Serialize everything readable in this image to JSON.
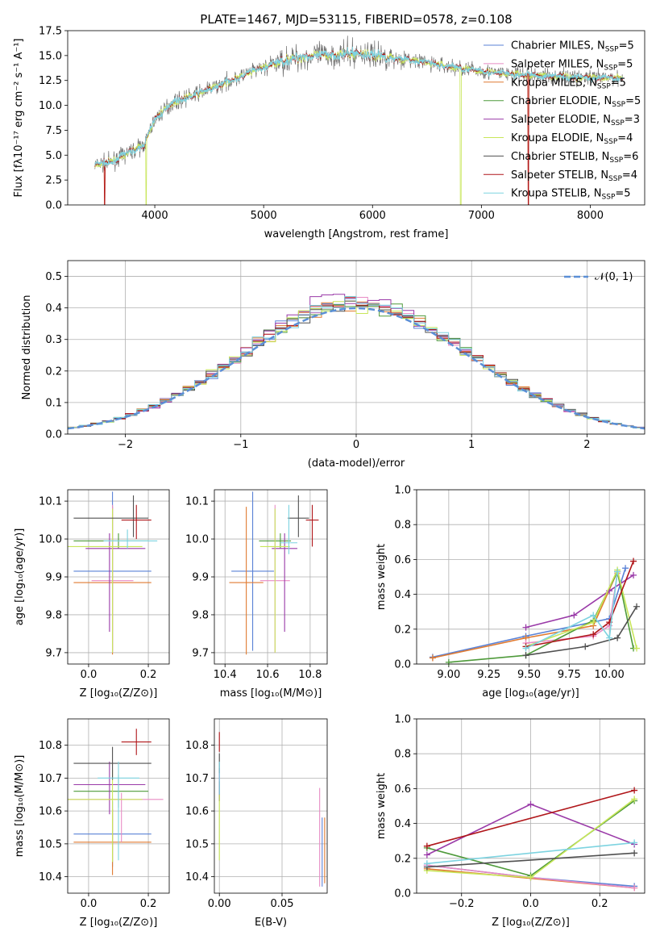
{
  "chart_data": [
    {
      "panel": "spectrum",
      "type": "line",
      "title": "PLATE=1467, MJD=53115, FIBERID=0578, z=0.108",
      "xlabel": "wavelength [Angstrom, rest frame]",
      "ylabel": "Flux [fλ10⁻¹⁷ erg cm⁻² s⁻¹ A⁻¹]",
      "xlim": [
        3200,
        8500
      ],
      "ylim": [
        0,
        17.5
      ],
      "xticks": [
        "4000",
        "5000",
        "6000",
        "7000",
        "8000"
      ],
      "yticks": [
        "0.0",
        "2.5",
        "5.0",
        "7.5",
        "10.0",
        "12.5",
        "15.0",
        "17.5"
      ],
      "legend_position": "right",
      "series": [
        {
          "name": "Chabrier MILES, N",
          "sub": "SSP",
          "suffix": "=5",
          "color": "#5a82d6"
        },
        {
          "name": "Salpeter MILES, N",
          "sub": "SSP",
          "suffix": "=5",
          "color": "#e88bc4"
        },
        {
          "name": "Kroupa MILES, N",
          "sub": "SSP",
          "suffix": "=5",
          "color": "#e07a30"
        },
        {
          "name": "Chabrier ELODIE, N",
          "sub": "SSP",
          "suffix": "=5",
          "color": "#4e9a3a"
        },
        {
          "name": "Salpeter ELODIE, N",
          "sub": "SSP",
          "suffix": "=3",
          "color": "#9a3aa8"
        },
        {
          "name": "Kroupa ELODIE, N",
          "sub": "SSP",
          "suffix": "=4",
          "color": "#c8e65a"
        },
        {
          "name": "Chabrier STELIB, N",
          "sub": "SSP",
          "suffix": "=6",
          "color": "#505050"
        },
        {
          "name": "Salpeter STELIB, N",
          "sub": "SSP",
          "suffix": "=4",
          "color": "#b0161a"
        },
        {
          "name": "Kroupa STELIB, N",
          "sub": "SSP",
          "suffix": "=5",
          "color": "#7dd3e0"
        }
      ],
      "continuum": {
        "x": [
          3450,
          3600,
          3750,
          3900,
          4000,
          4150,
          4300,
          4500,
          4700,
          4900,
          5100,
          5300,
          5500,
          5700,
          5900,
          6100,
          6300,
          6500,
          6700,
          6900,
          7100,
          7300,
          7500,
          7700,
          7900,
          8100,
          8300
        ],
        "y": [
          4.0,
          4.3,
          5.2,
          6.0,
          8.6,
          10.2,
          10.8,
          11.6,
          12.5,
          13.4,
          14.2,
          14.8,
          15.0,
          15.1,
          15.2,
          14.9,
          14.6,
          14.3,
          13.9,
          13.6,
          13.3,
          13.1,
          13.0,
          12.9,
          12.8,
          12.7,
          12.8
        ]
      }
    },
    {
      "panel": "residuals",
      "type": "line",
      "xlabel": "(data-model)/error",
      "ylabel": "Normed distribution",
      "xlim": [
        -2.5,
        2.5
      ],
      "ylim": [
        0,
        0.55
      ],
      "xticks": [
        "−2",
        "−1",
        "0",
        "1",
        "2"
      ],
      "yticks": [
        "0.0",
        "0.1",
        "0.2",
        "0.3",
        "0.4",
        "0.5"
      ],
      "legend": "𝒩(0, 1)",
      "legend_position": "top-right",
      "gaussian": {
        "mean": 0,
        "sigma": 1,
        "color": "#5b8fd6"
      }
    },
    {
      "panel": "age-vs-Z",
      "type": "scatter",
      "xlabel": "Z [log₁₀(Z/Z⊙)]",
      "ylabel": "age  [log₁₀(age/yr)]",
      "xlim": [
        -0.07,
        0.27
      ],
      "ylim": [
        9.67,
        10.13
      ],
      "xticks": [
        "0.0",
        "0.2"
      ],
      "yticks": [
        "9.7",
        "9.8",
        "9.9",
        "10.0",
        "10.1"
      ],
      "points": [
        {
          "x": 0.08,
          "y": 9.915,
          "xerr": [
            0.13,
            0.13
          ],
          "yerr": [
            0.21,
            0.21
          ],
          "color": "#5a82d6"
        },
        {
          "x": 0.08,
          "y": 9.885,
          "xerr": [
            0.13,
            0.13
          ],
          "yerr": [
            0.19,
            0.2
          ],
          "color": "#e07a30"
        },
        {
          "x": 0.08,
          "y": 9.89,
          "xerr": [
            0.07,
            0.07
          ],
          "yerr": [
            0.19,
            0.2
          ],
          "color": "#e88bc4"
        },
        {
          "x": 0.1,
          "y": 9.995,
          "xerr": [
            0.15,
            0.1
          ],
          "yerr": [
            0.02,
            0.02
          ],
          "color": "#4e9a3a"
        },
        {
          "x": 0.07,
          "y": 9.975,
          "xerr": [
            0.08,
            0.12
          ],
          "yerr": [
            0.22,
            0.04
          ],
          "color": "#9a3aa8"
        },
        {
          "x": 0.08,
          "y": 9.98,
          "xerr": [
            0.15,
            0.1
          ],
          "yerr": [
            0.28,
            0.1
          ],
          "color": "#c8e65a"
        },
        {
          "x": 0.15,
          "y": 10.055,
          "xerr": [
            0.2,
            0.05
          ],
          "yerr": [
            0.05,
            0.06
          ],
          "color": "#505050"
        },
        {
          "x": 0.16,
          "y": 10.05,
          "xerr": [
            0.05,
            0.05
          ],
          "yerr": [
            0.05,
            0.04
          ],
          "color": "#b0161a"
        },
        {
          "x": 0.13,
          "y": 9.995,
          "xerr": [
            0.08,
            0.1
          ],
          "yerr": [
            0.02,
            0.03
          ],
          "color": "#7dd3e0"
        }
      ]
    },
    {
      "panel": "age-vs-mass",
      "type": "scatter",
      "xlabel": "mass [log₁₀(M/M⊙)]",
      "ylabel": "",
      "xlim": [
        10.35,
        10.88
      ],
      "ylim": [
        9.67,
        10.13
      ],
      "xticks": [
        "10.4",
        "10.6",
        "10.8"
      ],
      "yticks": [
        "9.7",
        "9.8",
        "9.9",
        "10.0",
        "10.1"
      ],
      "points": [
        {
          "x": 10.53,
          "y": 9.915,
          "xerr": [
            0.1,
            0.1
          ],
          "yerr": [
            0.21,
            0.21
          ],
          "color": "#5a82d6"
        },
        {
          "x": 10.5,
          "y": 9.885,
          "xerr": [
            0.08,
            0.08
          ],
          "yerr": [
            0.19,
            0.2
          ],
          "color": "#e07a30"
        },
        {
          "x": 10.635,
          "y": 9.89,
          "xerr": [
            0.07,
            0.07
          ],
          "yerr": [
            0.19,
            0.2
          ],
          "color": "#e88bc4"
        },
        {
          "x": 10.66,
          "y": 9.995,
          "xerr": [
            0.1,
            0.05
          ],
          "yerr": [
            0.02,
            0.02
          ],
          "color": "#4e9a3a"
        },
        {
          "x": 10.68,
          "y": 9.975,
          "xerr": [
            0.06,
            0.06
          ],
          "yerr": [
            0.22,
            0.04
          ],
          "color": "#9a3aa8"
        },
        {
          "x": 10.635,
          "y": 9.98,
          "xerr": [
            0.07,
            0.07
          ],
          "yerr": [
            0.28,
            0.1
          ],
          "color": "#c8e65a"
        },
        {
          "x": 10.745,
          "y": 10.055,
          "xerr": [
            0.05,
            0.05
          ],
          "yerr": [
            0.05,
            0.06
          ],
          "color": "#505050"
        },
        {
          "x": 10.81,
          "y": 10.05,
          "xerr": [
            0.03,
            0.03
          ],
          "yerr": [
            0.07,
            0.04
          ],
          "color": "#b0161a"
        },
        {
          "x": 10.7,
          "y": 9.99,
          "xerr": [
            0.04,
            0.04
          ],
          "yerr": [
            0.03,
            0.1
          ],
          "color": "#7dd3e0"
        }
      ]
    },
    {
      "panel": "massweight-vs-age",
      "type": "line",
      "xlabel": "age  [log₁₀(age/yr)]",
      "ylabel": "mass weight",
      "xlim": [
        8.8,
        10.22
      ],
      "ylim": [
        0,
        1.0
      ],
      "xticks": [
        "9.00",
        "9.25",
        "9.50",
        "9.75",
        "10.00"
      ],
      "yticks": [
        "0.0",
        "0.2",
        "0.4",
        "0.6",
        "0.8",
        "1.0"
      ],
      "series": [
        {
          "color": "#5a82d6",
          "x": [
            8.9,
            9.48,
            10.0,
            10.1
          ],
          "y": [
            0.04,
            0.16,
            0.26,
            0.55
          ]
        },
        {
          "color": "#e07a30",
          "x": [
            8.9,
            9.48,
            9.9,
            10.05
          ],
          "y": [
            0.035,
            0.15,
            0.22,
            0.53
          ]
        },
        {
          "color": "#e88bc4",
          "x": [
            9.48,
            9.9,
            10.0,
            10.05
          ],
          "y": [
            0.12,
            0.16,
            0.22,
            0.52
          ]
        },
        {
          "color": "#4e9a3a",
          "x": [
            9.0,
            9.48,
            9.9,
            10.05,
            10.15
          ],
          "y": [
            0.01,
            0.05,
            0.25,
            0.53,
            0.09
          ]
        },
        {
          "color": "#9a3aa8",
          "x": [
            9.48,
            9.78,
            10.0,
            10.15
          ],
          "y": [
            0.21,
            0.28,
            0.42,
            0.51
          ]
        },
        {
          "color": "#c8e65a",
          "x": [
            9.48,
            9.9,
            10.05,
            10.17
          ],
          "y": [
            0.1,
            0.24,
            0.54,
            0.09
          ]
        },
        {
          "color": "#505050",
          "x": [
            9.48,
            9.85,
            10.05,
            10.17
          ],
          "y": [
            0.05,
            0.1,
            0.15,
            0.33
          ]
        },
        {
          "color": "#b0161a",
          "x": [
            9.48,
            9.9,
            10.0,
            10.15
          ],
          "y": [
            0.1,
            0.17,
            0.24,
            0.59
          ]
        },
        {
          "color": "#7dd3e0",
          "x": [
            9.48,
            9.9,
            10.0,
            10.05
          ],
          "y": [
            0.09,
            0.28,
            0.15,
            0.53
          ]
        }
      ]
    },
    {
      "panel": "mass-vs-Z",
      "type": "scatter",
      "xlabel": "Z [log₁₀(Z/Z⊙)]",
      "ylabel": "mass [log₁₀(M/M⊙)]",
      "xlim": [
        -0.07,
        0.27
      ],
      "ylim": [
        10.35,
        10.88
      ],
      "xticks": [
        "0.0",
        "0.2"
      ],
      "yticks": [
        "10.4",
        "10.5",
        "10.6",
        "10.7",
        "10.8"
      ],
      "points": [
        {
          "x": 0.08,
          "y": 10.53,
          "xerr": [
            0.13,
            0.13
          ],
          "yerr": [
            0.1,
            0.1
          ],
          "color": "#5a82d6"
        },
        {
          "x": 0.08,
          "y": 10.505,
          "xerr": [
            0.13,
            0.13
          ],
          "yerr": [
            0.1,
            0.1
          ],
          "color": "#e07a30"
        },
        {
          "x": 0.11,
          "y": 10.635,
          "xerr": [
            0.18,
            0.14
          ],
          "yerr": [
            0.13,
            0.02
          ],
          "color": "#e88bc4"
        },
        {
          "x": 0.1,
          "y": 10.66,
          "xerr": [
            0.15,
            0.1
          ],
          "yerr": [
            0.05,
            0.05
          ],
          "color": "#4e9a3a"
        },
        {
          "x": 0.07,
          "y": 10.68,
          "xerr": [
            0.12,
            0.12
          ],
          "yerr": [
            0.09,
            0.07
          ],
          "color": "#9a3aa8"
        },
        {
          "x": 0.08,
          "y": 10.635,
          "xerr": [
            0.15,
            0.1
          ],
          "yerr": [
            0.19,
            0.09
          ],
          "color": "#c8e65a"
        },
        {
          "x": 0.08,
          "y": 10.745,
          "xerr": [
            0.13,
            0.13
          ],
          "yerr": [
            0.05,
            0.05
          ],
          "color": "#505050"
        },
        {
          "x": 0.16,
          "y": 10.81,
          "xerr": [
            0.05,
            0.05
          ],
          "yerr": [
            0.04,
            0.04
          ],
          "color": "#b0161a"
        },
        {
          "x": 0.1,
          "y": 10.7,
          "xerr": [
            0.07,
            0.07
          ],
          "yerr": [
            0.25,
            0.05
          ],
          "color": "#7dd3e0"
        }
      ]
    },
    {
      "panel": "mass-vs-EBV",
      "type": "scatter",
      "xlabel": "E(B-V)",
      "ylabel": "",
      "xlim": [
        -0.004,
        0.086
      ],
      "ylim": [
        10.35,
        10.88
      ],
      "xticks": [
        "0.00",
        "0.05"
      ],
      "yticks": [
        "10.4",
        "10.5",
        "10.6",
        "10.7",
        "10.8"
      ],
      "points": [
        {
          "x": 0.082,
          "y": 10.53,
          "xerr": [
            0,
            0
          ],
          "yerr": [
            0.16,
            0.05
          ],
          "color": "#5a82d6"
        },
        {
          "x": 0.084,
          "y": 10.48,
          "xerr": [
            0,
            0
          ],
          "yerr": [
            0.1,
            0.1
          ],
          "color": "#e07a30"
        },
        {
          "x": 0.08,
          "y": 10.52,
          "xerr": [
            0,
            0
          ],
          "yerr": [
            0.15,
            0.15
          ],
          "color": "#e88bc4"
        },
        {
          "x": 0.0,
          "y": 10.66,
          "xerr": [
            0,
            0
          ],
          "yerr": [
            0.03,
            0.03
          ],
          "color": "#4e9a3a"
        },
        {
          "x": 0.0,
          "y": 10.68,
          "xerr": [
            0,
            0
          ],
          "yerr": [
            0.05,
            0.05
          ],
          "color": "#9a3aa8"
        },
        {
          "x": 0.0,
          "y": 10.55,
          "xerr": [
            0,
            0
          ],
          "yerr": [
            0.1,
            0.1
          ],
          "color": "#c8e65a"
        },
        {
          "x": 0.0,
          "y": 10.745,
          "xerr": [
            0,
            0
          ],
          "yerr": [
            0.03,
            0.03
          ],
          "color": "#505050"
        },
        {
          "x": 0.0,
          "y": 10.81,
          "xerr": [
            0,
            0
          ],
          "yerr": [
            0.03,
            0.03
          ],
          "color": "#b0161a"
        },
        {
          "x": 0.0,
          "y": 10.7,
          "xerr": [
            0,
            0
          ],
          "yerr": [
            0.05,
            0.05
          ],
          "color": "#7dd3e0"
        }
      ]
    },
    {
      "panel": "massweight-vs-Z",
      "type": "line",
      "xlabel": "Z [log₁₀(Z/Z⊙)]",
      "ylabel": "mass weight",
      "xlim": [
        -0.33,
        0.33
      ],
      "ylim": [
        0,
        1.0
      ],
      "xticks": [
        "−0.2",
        "0.0",
        "0.2"
      ],
      "yticks": [
        "0.0",
        "0.2",
        "0.4",
        "0.6",
        "0.8",
        "1.0"
      ],
      "series": [
        {
          "color": "#5a82d6",
          "x": [
            -0.3,
            0.0,
            0.3
          ],
          "y": [
            0.16,
            0.09,
            0.04
          ]
        },
        {
          "color": "#e07a30",
          "x": [
            -0.3,
            0.3
          ],
          "y": [
            0.14,
            0.03
          ]
        },
        {
          "color": "#e88bc4",
          "x": [
            -0.3,
            0.0,
            0.3
          ],
          "y": [
            0.16,
            0.09,
            0.03
          ]
        },
        {
          "color": "#4e9a3a",
          "x": [
            -0.3,
            0.0,
            0.3
          ],
          "y": [
            0.26,
            0.1,
            0.53
          ]
        },
        {
          "color": "#9a3aa8",
          "x": [
            -0.3,
            0.0,
            0.3
          ],
          "y": [
            0.22,
            0.51,
            0.28
          ]
        },
        {
          "color": "#c8e65a",
          "x": [
            -0.3,
            0.0,
            0.3
          ],
          "y": [
            0.13,
            0.09,
            0.54
          ]
        },
        {
          "color": "#505050",
          "x": [
            -0.3,
            0.3
          ],
          "y": [
            0.15,
            0.23
          ]
        },
        {
          "color": "#b0161a",
          "x": [
            -0.3,
            0.3
          ],
          "y": [
            0.27,
            0.59
          ]
        },
        {
          "color": "#7dd3e0",
          "x": [
            -0.3,
            0.3
          ],
          "y": [
            0.17,
            0.29
          ]
        }
      ]
    }
  ]
}
